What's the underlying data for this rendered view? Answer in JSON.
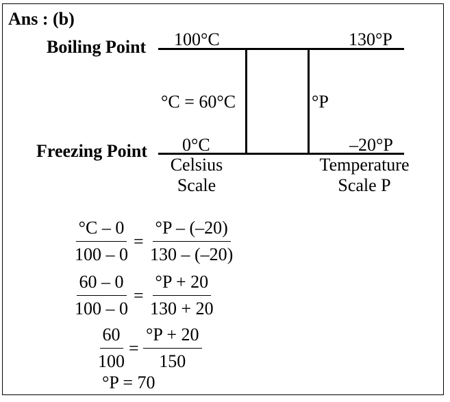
{
  "answer": {
    "label": "Ans : (b)"
  },
  "diagram": {
    "boiling_label": "Boiling Point",
    "freezing_label": "Freezing Point",
    "celsius_top": "100°C",
    "celsius_bottom": "0°C",
    "p_top": "130°P",
    "p_bottom": "–20°P",
    "celsius_mid": "°C = 60°C",
    "p_mid": "°P",
    "celsius_scale_line1": "Celsius",
    "celsius_scale_line2": "Scale",
    "p_scale_line1": "Temperature",
    "p_scale_line2": "Scale P"
  },
  "equations": {
    "eq1": {
      "lhs_num": "°C – 0",
      "lhs_den": "100 – 0",
      "eq": "=",
      "rhs_num": "°P – (–20)",
      "rhs_den": "130 – (–20)"
    },
    "eq2": {
      "lhs_num": "60 – 0",
      "lhs_den": "100 – 0",
      "eq": "=",
      "rhs_num": "°P + 20",
      "rhs_den": "130 + 20"
    },
    "eq3": {
      "lhs_num": "60",
      "lhs_den": "100",
      "eq": "=",
      "rhs_num": "°P + 20",
      "rhs_den": "150"
    },
    "result": "°P = 70"
  }
}
